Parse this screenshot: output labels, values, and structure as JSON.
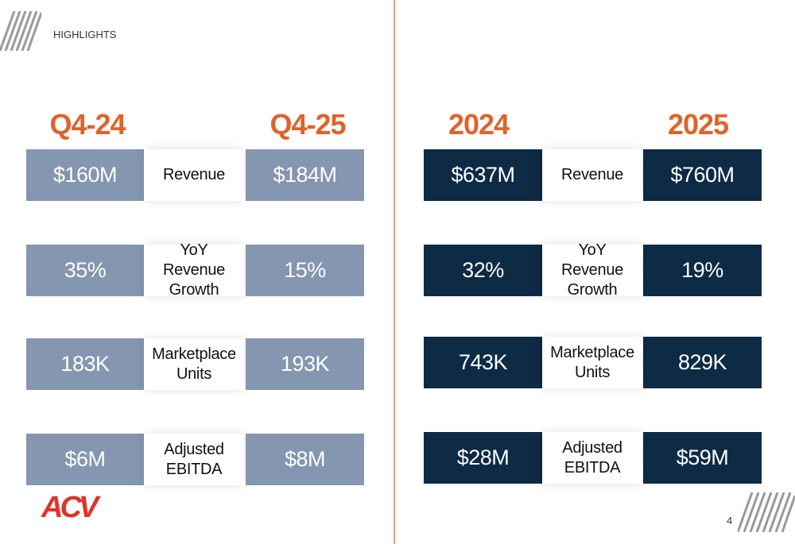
{
  "header": {
    "title": "HIGHLIGHTS"
  },
  "panels": [
    {
      "periods": [
        "Q4-24",
        "Q4-25"
      ],
      "rows": [
        {
          "label": "Revenue",
          "values": [
            "$160M",
            "$184M"
          ]
        },
        {
          "label": "YoY Revenue Growth",
          "values": [
            "35%",
            "15%"
          ]
        },
        {
          "label": "Marketplace Units",
          "values": [
            "183K",
            "193K"
          ]
        },
        {
          "label": "Adjusted EBITDA",
          "values": [
            "$6M",
            "$8M"
          ]
        }
      ]
    },
    {
      "periods": [
        "2024",
        "2025"
      ],
      "rows": [
        {
          "label": "Revenue",
          "values": [
            "$637M",
            "$760M"
          ]
        },
        {
          "label": "YoY Revenue Growth",
          "values": [
            "32%",
            "19%"
          ]
        },
        {
          "label": "Marketplace Units",
          "values": [
            "743K",
            "829K"
          ]
        },
        {
          "label": "Adjusted EBITDA",
          "values": [
            "$28M",
            "$59M"
          ]
        }
      ]
    }
  ],
  "footer": {
    "logo": "ACV",
    "page_number": "4"
  }
}
